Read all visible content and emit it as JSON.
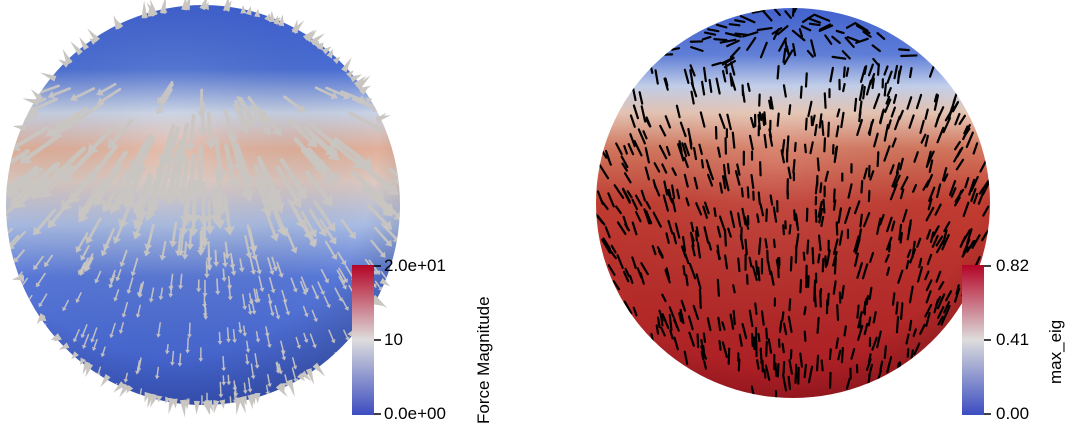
{
  "left_panel": {
    "colorbar": {
      "title": "Force Magnitude",
      "max_label": "2.0e+01",
      "mid_label": "10",
      "min_label": "0.0e+00",
      "colors": [
        "#3b4cc0",
        "#dddddd",
        "#b40426"
      ]
    },
    "glyph_color": "#c9c6c2"
  },
  "right_panel": {
    "colorbar": {
      "title": "max_eig",
      "max_label": "0.82",
      "mid_label": "0.41",
      "min_label": "0.00",
      "colors": [
        "#3b4cc0",
        "#dddddd",
        "#b40426"
      ]
    },
    "glyph_color": "#000000"
  }
}
